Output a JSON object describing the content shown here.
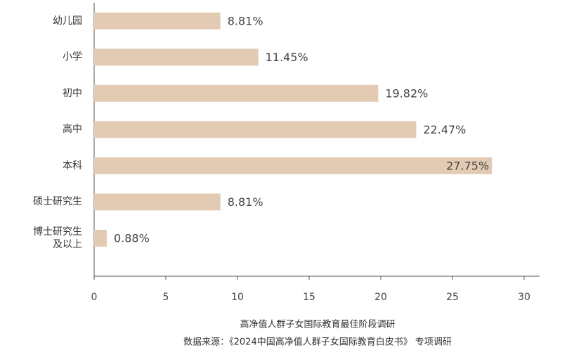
{
  "chart_data": {
    "type": "bar",
    "orientation": "horizontal",
    "title": "高净值人群子女国际教育最佳阶段调研",
    "subtitle": "数据来源：《2024中国高净值人群子女国际教育白皮书》 专项调研",
    "categories": [
      "幼儿园",
      "小学",
      "初中",
      "高中",
      "本科",
      "硕士研究生",
      "博士研究生及以上"
    ],
    "values": [
      8.81,
      11.45,
      19.82,
      22.47,
      27.75,
      8.81,
      0.88
    ],
    "value_labels": [
      "8.81%",
      "11.45%",
      "19.82%",
      "22.47%",
      "27.75%",
      "8.81%",
      "0.88%"
    ],
    "color": "#e2cbb2",
    "xlim": [
      0,
      30
    ],
    "xticks": [
      0,
      5,
      10,
      15,
      20,
      25,
      30
    ],
    "grid": false
  }
}
